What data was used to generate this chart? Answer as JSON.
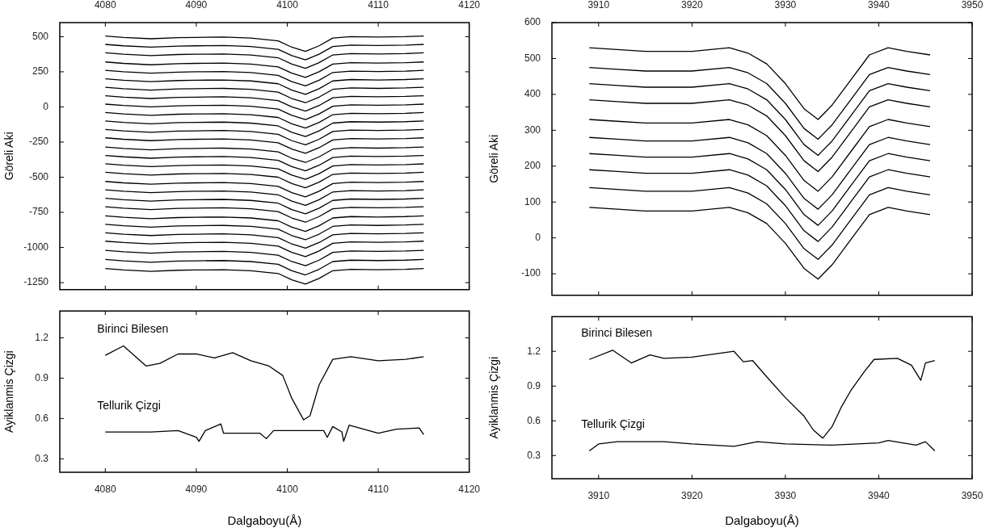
{
  "chart_data": [
    {
      "type": "line",
      "ylabel": "Göreli Aki",
      "xlim": [
        4075,
        4120
      ],
      "xticks": [
        4080,
        4090,
        4100,
        4110,
        4120
      ],
      "ylim": [
        -1300,
        600
      ],
      "yticks": [
        -1250,
        -1000,
        -750,
        -500,
        -250,
        0,
        250,
        500
      ],
      "legend": false,
      "x": [
        4080,
        4082,
        4085,
        4088,
        4090,
        4093,
        4096,
        4099,
        4100.5,
        4102,
        4103.5,
        4105,
        4107,
        4110,
        4113,
        4115
      ],
      "series": [
        {
          "color": "#000000",
          "values": [
            505,
            495,
            485,
            493,
            495,
            497,
            490,
            470,
            425,
            395,
            435,
            490,
            500,
            497,
            500,
            505
          ]
        },
        {
          "color": "#000000",
          "values": [
            445,
            435,
            425,
            433,
            435,
            437,
            430,
            410,
            365,
            335,
            375,
            430,
            440,
            437,
            440,
            445
          ]
        },
        {
          "color": "#000000",
          "values": [
            385,
            375,
            365,
            373,
            375,
            377,
            370,
            350,
            305,
            275,
            315,
            370,
            380,
            377,
            380,
            385
          ]
        },
        {
          "color": "#000000",
          "values": [
            320,
            310,
            300,
            308,
            310,
            312,
            305,
            285,
            240,
            210,
            250,
            305,
            315,
            312,
            315,
            320
          ]
        },
        {
          "color": "#000000",
          "values": [
            260,
            250,
            240,
            248,
            250,
            252,
            245,
            225,
            180,
            150,
            190,
            245,
            255,
            252,
            255,
            260
          ]
        },
        {
          "color": "#000000",
          "values": [
            200,
            190,
            180,
            188,
            190,
            192,
            185,
            165,
            120,
            90,
            130,
            185,
            195,
            192,
            195,
            200
          ]
        },
        {
          "color": "#000000",
          "values": [
            140,
            130,
            120,
            128,
            130,
            132,
            125,
            105,
            60,
            30,
            70,
            125,
            135,
            132,
            135,
            140
          ]
        },
        {
          "color": "#000000",
          "values": [
            80,
            70,
            60,
            68,
            70,
            72,
            65,
            45,
            0,
            -30,
            10,
            65,
            75,
            72,
            75,
            80
          ]
        },
        {
          "color": "#000000",
          "values": [
            20,
            10,
            0,
            8,
            10,
            12,
            5,
            -15,
            -60,
            -90,
            -50,
            5,
            15,
            12,
            15,
            20
          ]
        },
        {
          "color": "#000000",
          "values": [
            -40,
            -50,
            -60,
            -52,
            -50,
            -48,
            -55,
            -75,
            -120,
            -150,
            -110,
            -55,
            -45,
            -48,
            -45,
            -40
          ]
        },
        {
          "color": "#000000",
          "values": [
            -100,
            -110,
            -120,
            -112,
            -110,
            -108,
            -115,
            -135,
            -180,
            -210,
            -170,
            -115,
            -105,
            -108,
            -105,
            -100
          ]
        },
        {
          "color": "#000000",
          "values": [
            -160,
            -170,
            -180,
            -172,
            -170,
            -168,
            -175,
            -195,
            -240,
            -270,
            -230,
            -175,
            -165,
            -168,
            -165,
            -160
          ]
        },
        {
          "color": "#000000",
          "values": [
            -220,
            -230,
            -240,
            -232,
            -230,
            -228,
            -235,
            -255,
            -300,
            -330,
            -290,
            -235,
            -225,
            -228,
            -225,
            -220
          ]
        },
        {
          "color": "#000000",
          "values": [
            -285,
            -295,
            -305,
            -297,
            -295,
            -293,
            -300,
            -320,
            -365,
            -395,
            -355,
            -300,
            -290,
            -293,
            -290,
            -285
          ]
        },
        {
          "color": "#000000",
          "values": [
            -345,
            -355,
            -365,
            -357,
            -355,
            -353,
            -360,
            -380,
            -425,
            -455,
            -415,
            -360,
            -350,
            -353,
            -350,
            -345
          ]
        },
        {
          "color": "#000000",
          "values": [
            -405,
            -415,
            -425,
            -417,
            -415,
            -413,
            -420,
            -440,
            -485,
            -515,
            -475,
            -420,
            -410,
            -413,
            -410,
            -405
          ]
        },
        {
          "color": "#000000",
          "values": [
            -465,
            -475,
            -485,
            -477,
            -475,
            -473,
            -480,
            -500,
            -545,
            -575,
            -535,
            -480,
            -470,
            -473,
            -470,
            -465
          ]
        },
        {
          "color": "#000000",
          "values": [
            -530,
            -540,
            -550,
            -542,
            -540,
            -538,
            -545,
            -565,
            -610,
            -640,
            -600,
            -545,
            -535,
            -538,
            -535,
            -530
          ]
        },
        {
          "color": "#000000",
          "values": [
            -590,
            -600,
            -610,
            -602,
            -600,
            -598,
            -605,
            -625,
            -670,
            -700,
            -660,
            -605,
            -595,
            -598,
            -595,
            -590
          ]
        },
        {
          "color": "#000000",
          "values": [
            -650,
            -660,
            -670,
            -662,
            -660,
            -658,
            -665,
            -685,
            -730,
            -760,
            -720,
            -665,
            -655,
            -658,
            -655,
            -650
          ]
        },
        {
          "color": "#000000",
          "values": [
            -710,
            -720,
            -730,
            -722,
            -720,
            -718,
            -725,
            -745,
            -790,
            -820,
            -780,
            -725,
            -715,
            -718,
            -715,
            -710
          ]
        },
        {
          "color": "#000000",
          "values": [
            -775,
            -785,
            -795,
            -787,
            -785,
            -783,
            -790,
            -810,
            -855,
            -885,
            -845,
            -790,
            -780,
            -783,
            -780,
            -775
          ]
        },
        {
          "color": "#000000",
          "values": [
            -835,
            -845,
            -855,
            -847,
            -845,
            -843,
            -850,
            -870,
            -915,
            -945,
            -905,
            -850,
            -840,
            -843,
            -840,
            -835
          ]
        },
        {
          "color": "#000000",
          "values": [
            -895,
            -905,
            -915,
            -907,
            -905,
            -903,
            -910,
            -930,
            -975,
            -1005,
            -965,
            -910,
            -900,
            -903,
            -900,
            -895
          ]
        },
        {
          "color": "#000000",
          "values": [
            -955,
            -965,
            -975,
            -967,
            -965,
            -963,
            -970,
            -990,
            -1035,
            -1065,
            -1025,
            -970,
            -960,
            -963,
            -960,
            -955
          ]
        },
        {
          "color": "#000000",
          "values": [
            -1020,
            -1030,
            -1040,
            -1032,
            -1030,
            -1028,
            -1035,
            -1055,
            -1100,
            -1130,
            -1090,
            -1035,
            -1025,
            -1028,
            -1025,
            -1020
          ]
        },
        {
          "color": "#000000",
          "values": [
            -1085,
            -1095,
            -1105,
            -1097,
            -1095,
            -1093,
            -1100,
            -1120,
            -1165,
            -1195,
            -1155,
            -1100,
            -1090,
            -1093,
            -1090,
            -1085
          ]
        },
        {
          "color": "#000000",
          "values": [
            -1150,
            -1160,
            -1170,
            -1162,
            -1160,
            -1158,
            -1165,
            -1185,
            -1230,
            -1260,
            -1220,
            -1165,
            -1155,
            -1158,
            -1155,
            -1150
          ]
        }
      ]
    },
    {
      "type": "line",
      "xlabel": "Dalgaboyu(Å)",
      "ylabel": "Ayiklanmis Çizgi",
      "xlim": [
        4075,
        4120
      ],
      "xticks": [
        4080,
        4090,
        4100,
        4110,
        4120
      ],
      "ylim": [
        0.2,
        1.4
      ],
      "yticks": [
        0.3,
        0.6,
        0.9,
        1.2
      ],
      "series": [
        {
          "name": "Birinci Bilesen",
          "color": "#000000",
          "x": [
            4080,
            4082,
            4084.5,
            4086,
            4088,
            4090,
            4092,
            4094,
            4096,
            4098,
            4099.5,
            4100.5,
            4101.8,
            4102.5,
            4103.5,
            4105,
            4107,
            4110,
            4113,
            4115
          ],
          "values": [
            1.07,
            1.14,
            0.99,
            1.01,
            1.08,
            1.08,
            1.05,
            1.09,
            1.03,
            0.99,
            0.92,
            0.75,
            0.59,
            0.62,
            0.85,
            1.04,
            1.06,
            1.03,
            1.04,
            1.06
          ]
        },
        {
          "name": "Tellurik Çizgi",
          "color": "#000000",
          "x": [
            4080,
            4085,
            4088,
            4090,
            4090.3,
            4091,
            4092.7,
            4093,
            4097,
            4097.7,
            4098.5,
            4104,
            4104.4,
            4105,
            4106,
            4106.2,
            4106.8,
            4110,
            4112,
            4114.5,
            4115
          ],
          "values": [
            0.5,
            0.5,
            0.51,
            0.46,
            0.43,
            0.51,
            0.56,
            0.49,
            0.49,
            0.45,
            0.51,
            0.51,
            0.46,
            0.54,
            0.5,
            0.43,
            0.55,
            0.49,
            0.52,
            0.53,
            0.48
          ]
        }
      ]
    },
    {
      "type": "line",
      "ylabel": "Göreli Aki",
      "xlim": [
        3905,
        3950
      ],
      "xticks": [
        3910,
        3920,
        3930,
        3940,
        3950
      ],
      "ylim": [
        -160,
        600
      ],
      "yticks": [
        -100,
        0,
        100,
        200,
        300,
        400,
        500,
        600
      ],
      "legend": false,
      "x": [
        3909,
        3912,
        3915,
        3920,
        3924,
        3926,
        3928,
        3930,
        3932,
        3933.5,
        3935,
        3937,
        3939,
        3941,
        3943,
        3945.5
      ],
      "series": [
        {
          "color": "#000000",
          "values": [
            530,
            525,
            520,
            520,
            530,
            515,
            485,
            430,
            360,
            330,
            370,
            440,
            510,
            530,
            520,
            510
          ]
        },
        {
          "color": "#000000",
          "values": [
            475,
            470,
            465,
            465,
            475,
            460,
            430,
            375,
            305,
            275,
            315,
            385,
            455,
            475,
            465,
            455
          ]
        },
        {
          "color": "#000000",
          "values": [
            430,
            425,
            420,
            420,
            430,
            415,
            385,
            330,
            260,
            230,
            270,
            340,
            410,
            430,
            420,
            410
          ]
        },
        {
          "color": "#000000",
          "values": [
            385,
            380,
            375,
            375,
            385,
            370,
            340,
            285,
            215,
            185,
            225,
            295,
            365,
            385,
            375,
            365
          ]
        },
        {
          "color": "#000000",
          "values": [
            330,
            325,
            320,
            320,
            330,
            315,
            285,
            230,
            160,
            130,
            170,
            240,
            310,
            330,
            320,
            310
          ]
        },
        {
          "color": "#000000",
          "values": [
            280,
            275,
            270,
            270,
            280,
            265,
            235,
            180,
            110,
            80,
            120,
            190,
            260,
            280,
            270,
            260
          ]
        },
        {
          "color": "#000000",
          "values": [
            235,
            230,
            225,
            225,
            235,
            220,
            190,
            135,
            65,
            35,
            75,
            145,
            215,
            235,
            225,
            215
          ]
        },
        {
          "color": "#000000",
          "values": [
            190,
            185,
            180,
            180,
            190,
            175,
            145,
            90,
            20,
            -10,
            30,
            100,
            170,
            190,
            180,
            170
          ]
        },
        {
          "color": "#000000",
          "values": [
            140,
            135,
            130,
            130,
            140,
            125,
            95,
            40,
            -30,
            -60,
            -20,
            50,
            120,
            140,
            130,
            120
          ]
        },
        {
          "color": "#000000",
          "values": [
            85,
            80,
            75,
            75,
            85,
            70,
            40,
            -15,
            -85,
            -115,
            -75,
            -5,
            65,
            85,
            75,
            65
          ]
        }
      ]
    },
    {
      "type": "line",
      "xlabel": "Dalgaboyu(Å)",
      "ylabel": "Ayiklanmis Çizgi",
      "xlim": [
        3905,
        3950
      ],
      "xticks": [
        3910,
        3920,
        3930,
        3940,
        3950
      ],
      "ylim": [
        0.1,
        1.5
      ],
      "yticks": [
        0.3,
        0.6,
        0.9,
        1.2
      ],
      "series": [
        {
          "name": "Birinci Bilesen",
          "color": "#000000",
          "x": [
            3909,
            3911.5,
            3913.5,
            3915.5,
            3917,
            3920,
            3924.5,
            3925.5,
            3926.5,
            3928,
            3930,
            3932,
            3933,
            3934,
            3935,
            3936,
            3937,
            3938.5,
            3939.5,
            3942,
            3943.5,
            3944.5,
            3945,
            3946
          ],
          "values": [
            1.13,
            1.21,
            1.1,
            1.17,
            1.14,
            1.15,
            1.2,
            1.11,
            1.12,
            0.98,
            0.8,
            0.64,
            0.52,
            0.45,
            0.55,
            0.72,
            0.86,
            1.03,
            1.13,
            1.14,
            1.08,
            0.95,
            1.1,
            1.12
          ]
        },
        {
          "name": "Tellurik Çizgi",
          "color": "#000000",
          "x": [
            3909,
            3910,
            3912,
            3917,
            3920,
            3924.5,
            3927,
            3930,
            3935,
            3940,
            3941,
            3944,
            3945,
            3946
          ],
          "values": [
            0.34,
            0.4,
            0.42,
            0.42,
            0.4,
            0.38,
            0.42,
            0.4,
            0.39,
            0.41,
            0.43,
            0.39,
            0.42,
            0.34
          ]
        }
      ]
    }
  ]
}
